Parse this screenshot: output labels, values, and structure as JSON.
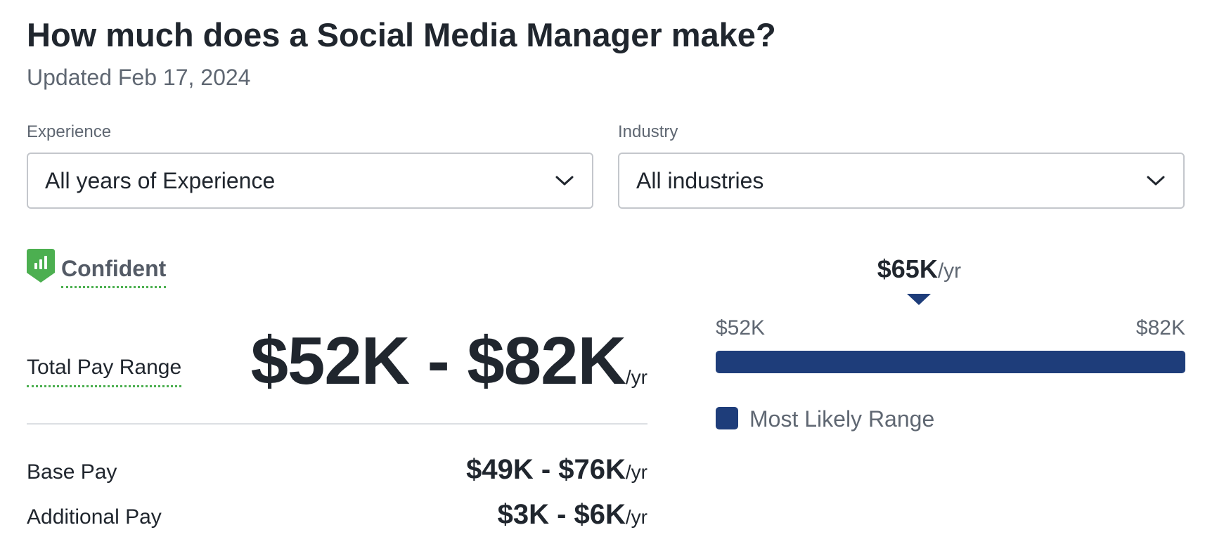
{
  "header": {
    "title": "How much does a Social Media Manager make?",
    "updated": "Updated Feb 17, 2024"
  },
  "filters": {
    "experience": {
      "label": "Experience",
      "value": "All years of Experience"
    },
    "industry": {
      "label": "Industry",
      "value": "All industries"
    }
  },
  "confidence": {
    "label": "Confident",
    "badge_icon": "bar-chart-shield-icon",
    "color": "#4caf50"
  },
  "total_pay": {
    "label": "Total Pay Range",
    "amount": "$52K - $82K",
    "unit": "/yr"
  },
  "breakdown": [
    {
      "label": "Base Pay",
      "amount": "$49K - $76K",
      "unit": "/yr"
    },
    {
      "label": "Additional Pay",
      "amount": "$3K - $6K",
      "unit": "/yr"
    }
  ],
  "range_chart": {
    "median_label": "$65K",
    "median_unit": "/yr",
    "median_value": 65,
    "min_label": "$52K",
    "max_label": "$82K",
    "min_value": 52,
    "max_value": 82,
    "likely_range": [
      52,
      82
    ],
    "bar_color": "#1e3d7a",
    "legend_label": "Most Likely Range"
  }
}
